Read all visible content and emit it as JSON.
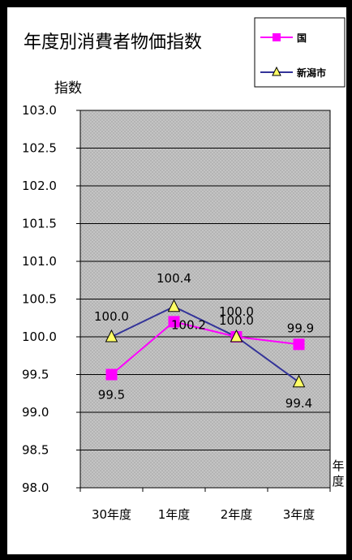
{
  "chart_data": {
    "type": "line",
    "title": "年度別消費者物価指数",
    "ylabel": "指数",
    "xlabel": "年度",
    "categories": [
      "30年度",
      "1年度",
      "2年度",
      "3年度"
    ],
    "ylim": [
      98.0,
      103.0
    ],
    "ytick_step": 0.5,
    "y_ticks": [
      "98.0",
      "98.5",
      "99.0",
      "99.5",
      "100.0",
      "100.5",
      "101.0",
      "101.5",
      "102.0",
      "102.5",
      "103.0"
    ],
    "grid": true,
    "legend": "top-right",
    "series": [
      {
        "name": "国",
        "values": [
          99.5,
          100.2,
          100.0,
          99.9
        ],
        "labels": [
          "99.5",
          "100.2",
          "100.0",
          "99.9"
        ],
        "color": "#FF00FF",
        "marker": "square"
      },
      {
        "name": "新潟市",
        "values": [
          100.0,
          100.4,
          100.0,
          99.4
        ],
        "labels": [
          "100.0",
          "100.4",
          "100.0",
          "99.4"
        ],
        "color": "#333399",
        "marker": "triangle"
      }
    ]
  }
}
